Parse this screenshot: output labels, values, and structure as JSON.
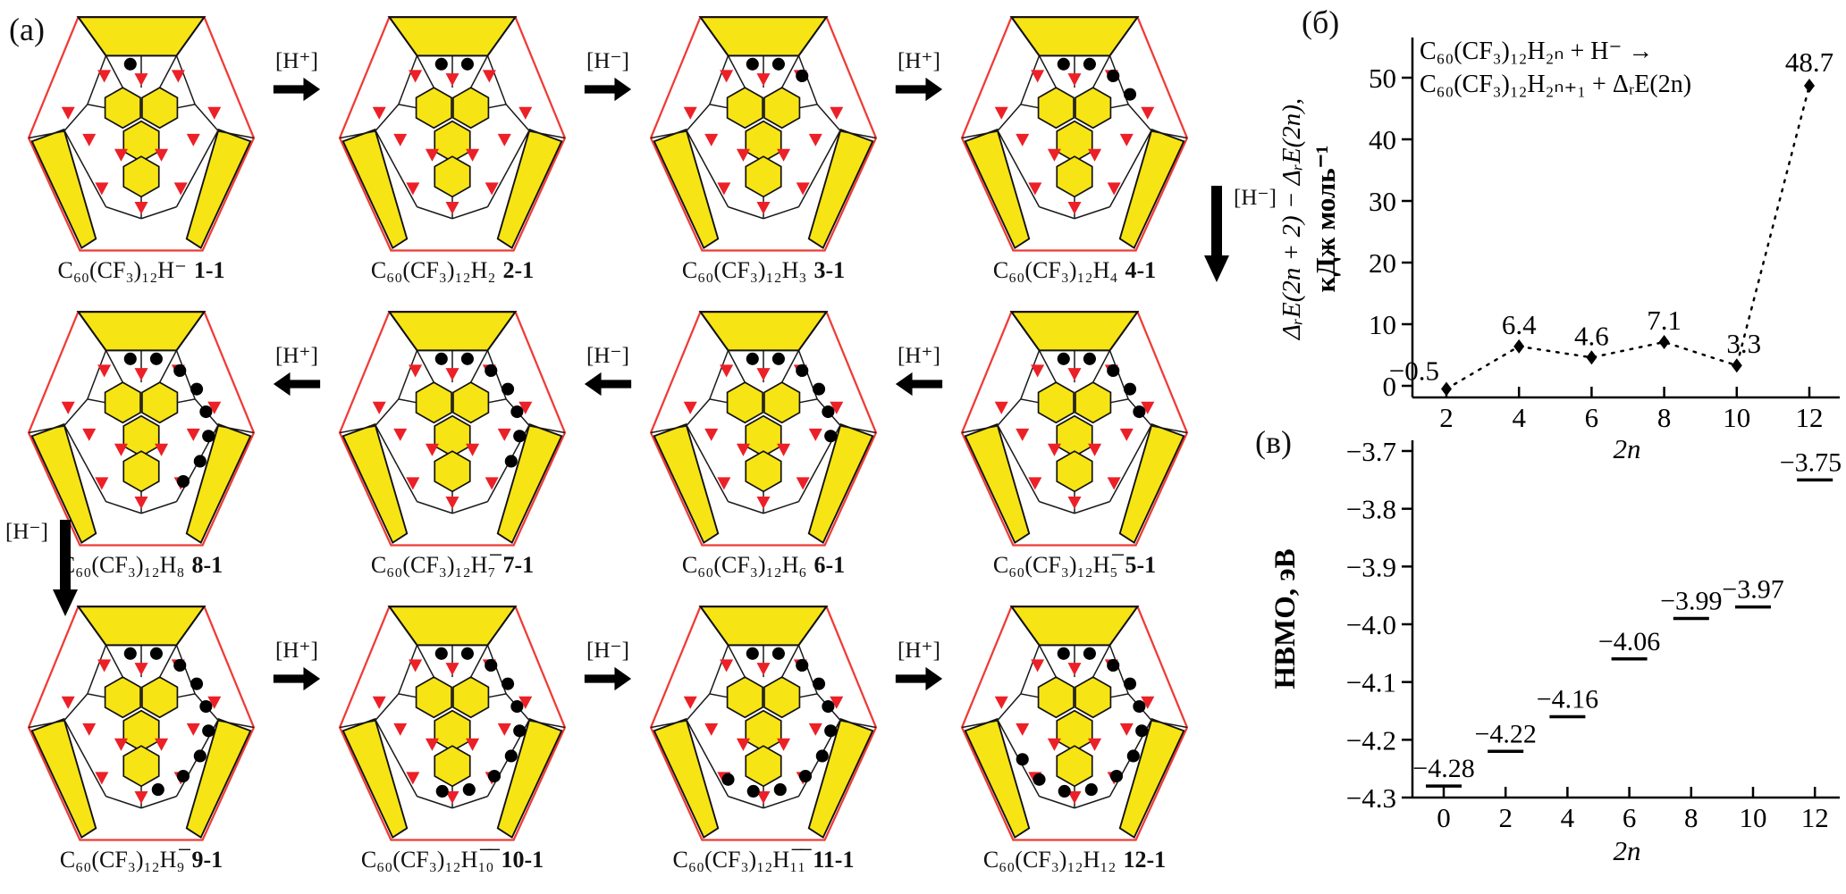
{
  "figure": {
    "panel_a": {
      "label": "(a)",
      "rows": [
        {
          "direction": "right",
          "cells": [
            {
              "formula": "C₆₀(CF₃)₁₂H⁻",
              "id": "1-1",
              "h_count": 1
            },
            {
              "formula": "C₆₀(CF₃)₁₂H₂",
              "id": "2-1",
              "h_count": 2
            },
            {
              "formula": "C₆₀(CF₃)₁₂H₃",
              "id": "3-1",
              "h_count": 3
            },
            {
              "formula": "C₆₀(CF₃)₁₂H₄",
              "id": "4-1",
              "h_count": 4
            }
          ],
          "arrows": [
            "[H⁺]",
            "[H⁻]",
            "[H⁺]"
          ]
        },
        {
          "direction": "left",
          "cells": [
            {
              "formula": "C₆₀(CF₃)₁₂H₈",
              "id": "8-1",
              "h_count": 8
            },
            {
              "formula": "C₆₀(CF₃)₁₂H₇̅",
              "id": "7-1",
              "h_count": 7
            },
            {
              "formula": "C₆₀(CF₃)₁₂H₆",
              "id": "6-1",
              "h_count": 6
            },
            {
              "formula": "C₆₀(CF₃)₁₂H₅̅",
              "id": "5-1",
              "h_count": 5
            }
          ],
          "arrows": [
            "[H⁺]",
            "[H⁻]",
            "[H⁺]"
          ]
        },
        {
          "direction": "right",
          "cells": [
            {
              "formula": "C₆₀(CF₃)₁₂H₉̅",
              "id": "9-1",
              "h_count": 9
            },
            {
              "formula": "C₆₀(CF₃)₁₂H₁̅₀̅",
              "id": "10-1",
              "h_count": 10
            },
            {
              "formula": "C₆₀(CF₃)₁₂H₁̅₁̅",
              "id": "11-1",
              "h_count": 11
            },
            {
              "formula": "C₆₀(CF₃)₁₂H₁₂",
              "id": "12-1",
              "h_count": 12
            }
          ],
          "arrows": [
            "[H⁺]",
            "[H⁻]",
            "[H⁺]"
          ]
        }
      ],
      "side_arrows": [
        {
          "label": "[H⁻]",
          "side": "right"
        },
        {
          "label": "[H⁻]",
          "side": "left"
        }
      ],
      "colors": {
        "highlight_yellow": "#f7e414",
        "cf3_red": "#ec2027",
        "outline_red": "#ef3b36",
        "h_black": "#000000"
      }
    },
    "panel_b": {
      "label": "(б)"
    },
    "panel_v": {
      "label": "(в)"
    }
  },
  "chart_data": [
    {
      "panel": "(б)",
      "type": "line",
      "x": [
        2,
        4,
        6,
        8,
        10,
        12
      ],
      "values": [
        -0.5,
        6.4,
        4.6,
        7.1,
        3.3,
        48.7
      ],
      "point_labels": [
        "−0.5",
        "6.4",
        "4.6",
        "7.1",
        "3.3",
        "48.7"
      ],
      "annotation_lines": [
        "C₆₀(CF₃)₁₂H₂ₙ + H⁻ →",
        "C₆₀(CF₃)₁₂H₂ₙ₊₁ + ΔᵣE(2n)"
      ],
      "ylabel_lines": [
        "ΔᵣE(2n + 2) − ΔᵣE(2n),",
        "кДж моль⁻¹"
      ],
      "xlabel": "2n",
      "yticks": [
        0,
        10,
        20,
        30,
        40,
        50
      ],
      "ytick_labels": [
        "0",
        "10",
        "20",
        "30",
        "40",
        "50"
      ],
      "xticks": [
        2,
        4,
        6,
        8,
        10,
        12
      ],
      "xtick_labels": [
        "2",
        "4",
        "6",
        "8",
        "10",
        "12"
      ],
      "ylim": [
        -2,
        56
      ],
      "marker": "diamond",
      "line_style": "dotted",
      "grid": false
    },
    {
      "panel": "(в)",
      "type": "scatter",
      "x": [
        0,
        2,
        4,
        6,
        8,
        10,
        12
      ],
      "values": [
        -4.28,
        -4.22,
        -4.16,
        -4.06,
        -3.99,
        -3.97,
        -3.75
      ],
      "point_labels": [
        "−4.28",
        "−4.22",
        "−4.16",
        "−4.06",
        "−3.99",
        "−3.97",
        "−3.75"
      ],
      "ylabel": "НВМО, эВ",
      "xlabel": "2n",
      "yticks": [
        -3.7,
        -3.8,
        -3.9,
        -4.0,
        -4.1,
        -4.2,
        -4.3
      ],
      "ytick_labels": [
        "−3.7",
        "−3.8",
        "−3.9",
        "−4.0",
        "−4.1",
        "−4.2",
        "−4.3"
      ],
      "xticks": [
        0,
        2,
        4,
        6,
        8,
        10,
        12
      ],
      "xtick_labels": [
        "0",
        "2",
        "4",
        "6",
        "8",
        "10",
        "12"
      ],
      "ylim": [
        -4.3,
        -3.7
      ],
      "marker": "dash",
      "line_style": "none",
      "grid": false
    }
  ]
}
